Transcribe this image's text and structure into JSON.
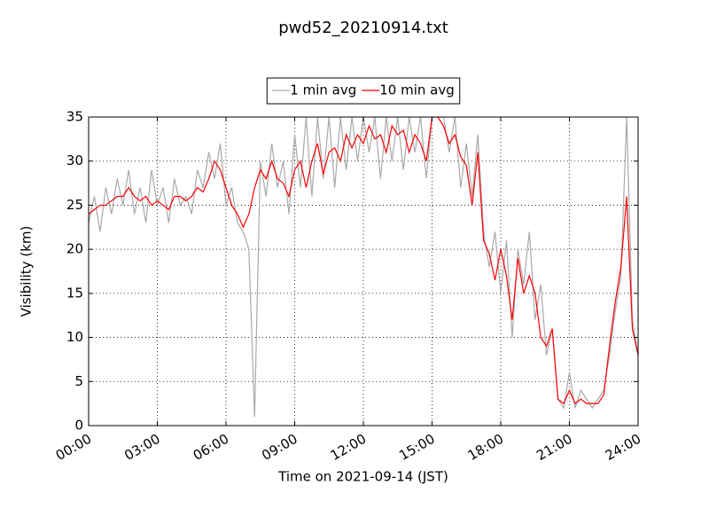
{
  "chart_data": {
    "type": "line",
    "title": "pwd52_20210914.txt",
    "xlabel": "Time on 2021-09-14 (JST)",
    "ylabel": "Visibility (km)",
    "x": [
      0,
      0.25,
      0.5,
      0.75,
      1,
      1.25,
      1.5,
      1.75,
      2,
      2.25,
      2.5,
      2.75,
      3,
      3.25,
      3.5,
      3.75,
      4,
      4.25,
      4.5,
      4.75,
      5,
      5.25,
      5.5,
      5.75,
      6,
      6.25,
      6.5,
      6.75,
      7,
      7.25,
      7.5,
      7.75,
      8,
      8.25,
      8.5,
      8.75,
      9,
      9.25,
      9.5,
      9.75,
      10,
      10.25,
      10.5,
      10.75,
      11,
      11.25,
      11.5,
      11.75,
      12,
      12.25,
      12.5,
      12.75,
      13,
      13.25,
      13.5,
      13.75,
      14,
      14.25,
      14.5,
      14.75,
      15,
      15.25,
      15.5,
      15.75,
      16,
      16.25,
      16.5,
      16.75,
      17,
      17.25,
      17.5,
      17.75,
      18,
      18.25,
      18.5,
      18.75,
      19,
      19.25,
      19.5,
      19.75,
      20,
      20.25,
      20.5,
      20.75,
      21,
      21.25,
      21.5,
      21.75,
      22,
      22.25,
      22.5,
      22.75,
      23,
      23.25,
      23.5,
      23.75,
      24
    ],
    "series": [
      {
        "name": "1 min avg",
        "color": "#a9a9a9",
        "values": [
          23,
          26,
          22,
          27,
          24,
          28,
          25,
          29,
          24,
          27,
          23,
          29,
          25,
          27,
          23,
          28,
          25,
          26,
          24,
          29,
          27,
          31,
          28,
          32,
          25,
          27,
          23,
          22,
          20,
          1,
          30,
          26,
          32,
          27,
          30,
          24,
          33,
          27,
          35,
          26,
          35,
          28,
          35,
          27,
          35,
          29,
          35,
          30,
          35,
          31,
          35,
          28,
          35,
          30,
          35,
          29,
          35,
          31,
          35,
          28,
          35,
          35,
          35,
          31,
          35,
          27,
          32,
          26,
          33,
          22,
          18,
          22,
          15,
          21,
          10,
          20,
          16,
          22,
          12,
          16,
          8,
          11,
          3,
          2,
          6,
          2,
          4,
          3,
          2,
          3,
          4,
          8,
          13,
          17,
          35,
          12,
          8
        ]
      },
      {
        "name": "10 min avg",
        "color": "#ff0000",
        "values": [
          24,
          24.5,
          25,
          25,
          25.5,
          26,
          26,
          27,
          26,
          25.5,
          26,
          25,
          25.5,
          25,
          24.5,
          26,
          26,
          25.5,
          26,
          27,
          26.5,
          28,
          30,
          29,
          27,
          25,
          24,
          22.5,
          24,
          27,
          29,
          28,
          30,
          28,
          27.5,
          26,
          29,
          30,
          27,
          30,
          32,
          28.5,
          31,
          31.5,
          30,
          33,
          31.5,
          33,
          32,
          34,
          32.5,
          33,
          31,
          34,
          33,
          33.5,
          31,
          33,
          32,
          30,
          35,
          35,
          34,
          32,
          33,
          30.5,
          29.5,
          25,
          31,
          21,
          19.5,
          16.5,
          20,
          17,
          12,
          19,
          15,
          17,
          15,
          10,
          9,
          11,
          3,
          2.5,
          4,
          2.5,
          3,
          2.5,
          2.5,
          2.5,
          3.5,
          9,
          14,
          18,
          26,
          11,
          8
        ]
      }
    ],
    "xlim": [
      0,
      24
    ],
    "xticks": [
      {
        "value": 0,
        "label": "00:00"
      },
      {
        "value": 3,
        "label": "03:00"
      },
      {
        "value": 6,
        "label": "06:00"
      },
      {
        "value": 9,
        "label": "09:00"
      },
      {
        "value": 12,
        "label": "12:00"
      },
      {
        "value": 15,
        "label": "15:00"
      },
      {
        "value": 18,
        "label": "18:00"
      },
      {
        "value": 21,
        "label": "21:00"
      },
      {
        "value": 24,
        "label": "24:00"
      }
    ],
    "ylim": [
      0,
      35
    ],
    "yticks": [
      0,
      5,
      10,
      15,
      20,
      25,
      30,
      35
    ],
    "grid": true,
    "legend": "top"
  }
}
